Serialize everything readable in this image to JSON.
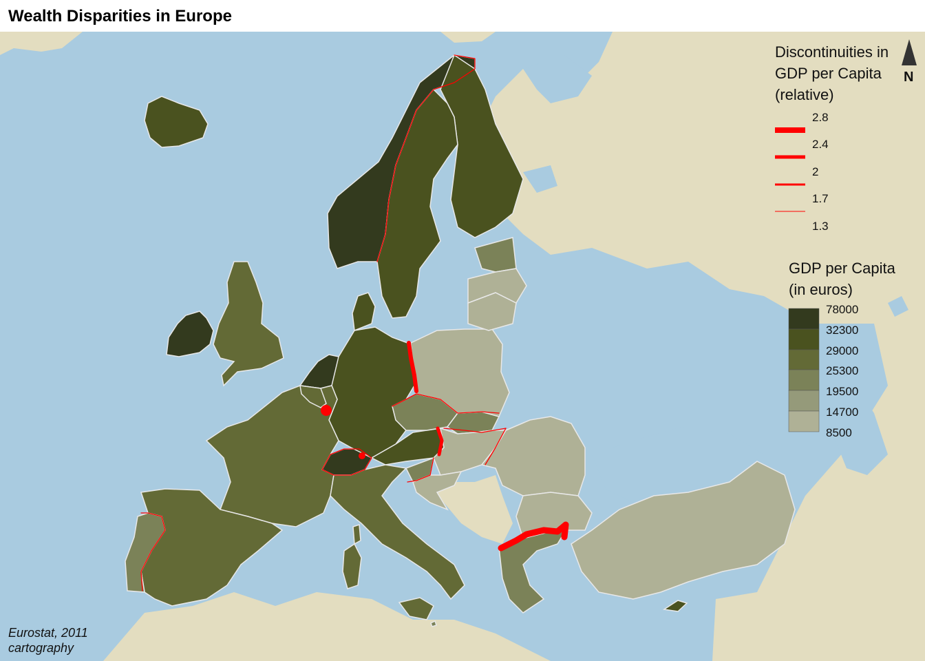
{
  "title": "Wealth Disparities in Europe",
  "source": {
    "line1": "Eurostat, 2011",
    "line2": "cartography"
  },
  "north_arrow": {
    "label": "N"
  },
  "colors": {
    "sea": "#a9cbe0",
    "land_outside": "#e3ddc0",
    "country_border": "#e8e8e8",
    "discontinuity": "#ff0000"
  },
  "legend_discontinuities": {
    "title_lines": [
      "Discontinuities in",
      "GDP per Capita",
      "(relative)"
    ],
    "breaks": [
      "2.8",
      "2.4",
      "2",
      "1.7",
      "1.3"
    ]
  },
  "legend_gdp": {
    "title_lines": [
      "GDP per Capita",
      "(in euros)"
    ],
    "breaks": [
      "78000",
      "32300",
      "29000",
      "25300",
      "19500",
      "14700",
      "8500"
    ],
    "class_colors": [
      "#333a1e",
      "#4a521f",
      "#636a36",
      "#7b8258",
      "#959a7a",
      "#afb196"
    ]
  }
}
